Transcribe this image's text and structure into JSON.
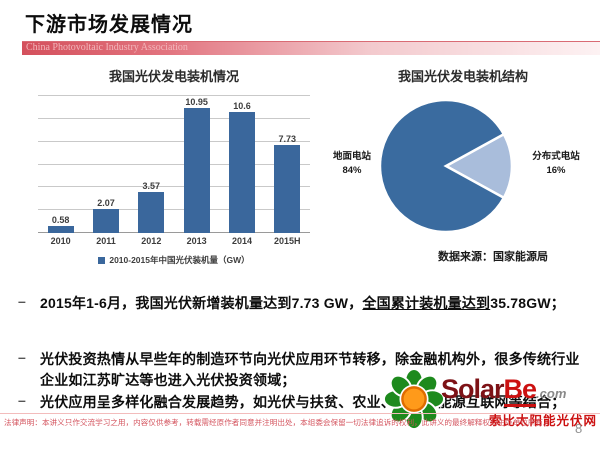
{
  "header": {
    "title": "下游市场发展情况",
    "banner": "China Photovoltaic Industry Association"
  },
  "chart_data": [
    {
      "type": "bar",
      "title": "我国光伏发电装机情况",
      "categories": [
        "2010",
        "2011",
        "2012",
        "2013",
        "2014",
        "2015H"
      ],
      "values": [
        0.58,
        2.07,
        3.57,
        10.95,
        10.6,
        7.73
      ],
      "legend": "2010-2015年中国光伏装机量（GW）",
      "ylim": [
        0,
        12
      ],
      "grid_step": 2,
      "grid": true,
      "bar_color": "#3a679c"
    },
    {
      "type": "pie",
      "title": "我国光伏发电装机结构",
      "slices": [
        {
          "label": "地面电站",
          "pct": "84%",
          "value": 84,
          "color": "#3a6b9f"
        },
        {
          "label": "分布式电站",
          "pct": "16%",
          "value": 16,
          "color": "#a9bddb"
        }
      ],
      "source": "数据来源：国家能源局"
    }
  ],
  "bullets": [
    {
      "pre": "2015年1-6月，我国光伏新增装机量达到7.73 GW，",
      "underline": "全国累计装机量达到",
      "post": "35.78GW；"
    },
    {
      "pre": "光伏投资热情从早些年的制造环节向光伏应用环节转移，除金融机构外，很多传统行业企业如江苏旷达等也进入光伏投资领域；",
      "underline": "",
      "post": ""
    },
    {
      "pre": "光伏应用呈多样化融合发展趋势，如光伏与扶贫、农业、环境、能源互联网等结合；",
      "underline": "",
      "post": ""
    }
  ],
  "logo": {
    "solar": "Solar",
    "be": "Be",
    "com": ".com",
    "tagline": "索比太阳能光伏网",
    "flower_green": "#1d8a1d",
    "center_orange": "#ff9a1a"
  },
  "footer": {
    "legal": "法律声明：本讲义只作交流学习之用，内容仅供参考，转载需经原作者同意并注明出处，本组委会保留一切法律追诉的权利，此讲义的最终解释权归主办单位所有。",
    "page_number": "8"
  }
}
